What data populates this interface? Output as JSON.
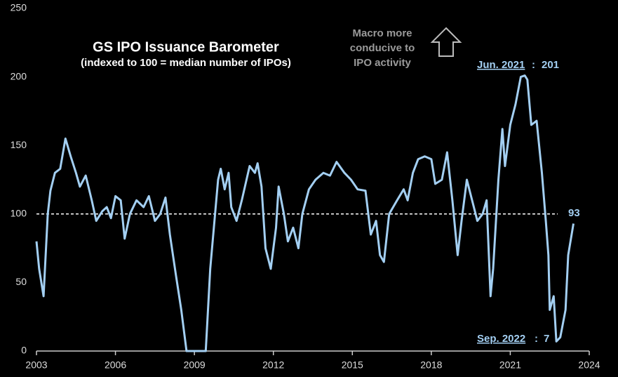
{
  "chart_data": {
    "type": "line",
    "title": "GS IPO Issuance Barometer",
    "subtitle": "(indexed to 100 = median number of IPOs)",
    "annotations": [
      "Macro more",
      "conducive to",
      "IPO activity"
    ],
    "peak_label": "Jun. 2021",
    "trough_label": "Sep. 2022",
    "reference_line": 100,
    "series": [
      {
        "color": "#a3cff2",
        "x": [
          2003,
          2003.1,
          2003.27,
          2003.43,
          2003.53,
          2003.7,
          2003.9,
          2004.1,
          2004.3,
          2004.5,
          2004.65,
          2004.87,
          2005.1,
          2005.27,
          2005.5,
          2005.67,
          2005.83,
          2006.0,
          2006.2,
          2006.35,
          2006.55,
          2006.8,
          2007.07,
          2007.27,
          2007.5,
          2007.7,
          2007.9,
          2008.07,
          2008.3,
          2008.5,
          2008.7,
          2009.43,
          2009.6,
          2009.9,
          2010.0,
          2010.15,
          2010.3,
          2010.4,
          2010.6,
          2010.8,
          2011.1,
          2011.3,
          2011.4,
          2011.55,
          2011.7,
          2011.9,
          2012.1,
          2012.2,
          2012.4,
          2012.55,
          2012.75,
          2012.95,
          2013.1,
          2013.35,
          2013.6,
          2013.9,
          2014.15,
          2014.4,
          2014.7,
          2014.95,
          2015.2,
          2015.5,
          2015.7,
          2015.9,
          2016.05,
          2016.2,
          2016.4,
          2016.7,
          2016.95,
          2017.1,
          2017.3,
          2017.5,
          2017.75,
          2018.0,
          2018.15,
          2018.4,
          2018.6,
          2018.8,
          2019.0,
          2019.15,
          2019.35,
          2019.55,
          2019.75,
          2019.95,
          2020.1,
          2020.25,
          2020.35,
          2020.55,
          2020.7,
          2020.8,
          2021.0,
          2021.2,
          2021.4,
          2021.55,
          2021.65,
          2021.8,
          2022.0,
          2022.2,
          2022.35,
          2022.45,
          2022.5,
          2022.65,
          2022.75,
          2022.9,
          2023.1,
          2023.2,
          2023.4
        ],
        "values": [
          80,
          60,
          40,
          100,
          117,
          130,
          133,
          155,
          142,
          130,
          120,
          128,
          110,
          95,
          102,
          105,
          97,
          113,
          110,
          82,
          100,
          110,
          105,
          113,
          95,
          100,
          112,
          85,
          55,
          30,
          0,
          0,
          60,
          125,
          133,
          118,
          130,
          105,
          95,
          110,
          135,
          130,
          137,
          120,
          75,
          60,
          90,
          120,
          100,
          80,
          90,
          75,
          100,
          118,
          125,
          130,
          128,
          138,
          130,
          125,
          118,
          117,
          85,
          95,
          70,
          65,
          100,
          110,
          118,
          110,
          130,
          140,
          142,
          140,
          122,
          125,
          145,
          110,
          70,
          95,
          125,
          110,
          95,
          100,
          110,
          40,
          60,
          125,
          162,
          135,
          165,
          180,
          200,
          201,
          198,
          165,
          168,
          130,
          95,
          70,
          30,
          40,
          7,
          10,
          30,
          70,
          93
        ]
      }
    ],
    "xlim": [
      2003,
      2024
    ],
    "xticks": [
      2003,
      2006,
      2009,
      2012,
      2015,
      2018,
      2021,
      2024
    ],
    "ylim": [
      0,
      250
    ],
    "yticks": [
      0,
      50,
      100,
      150,
      200,
      250
    ]
  }
}
